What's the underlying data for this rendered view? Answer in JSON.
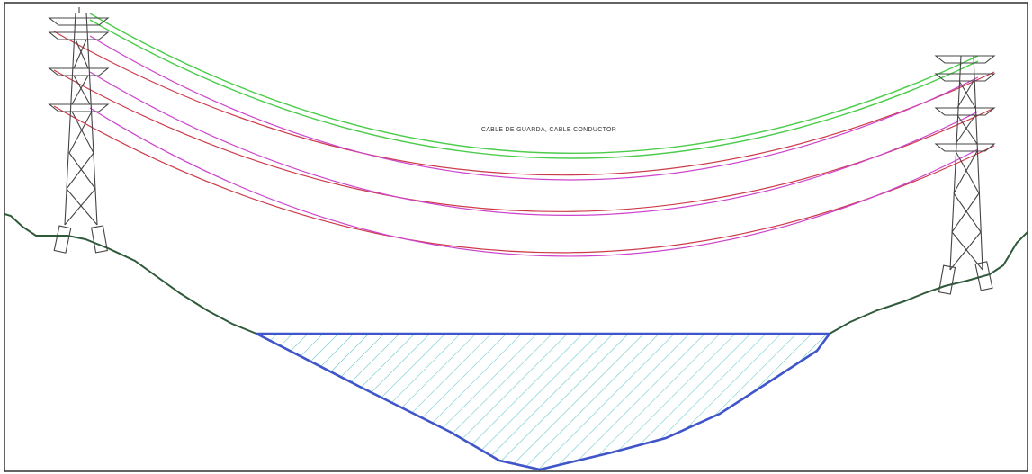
{
  "drawing": {
    "label": "CABLE DE GUARDA, CABLE CONDUCTOR"
  },
  "colors": {
    "background": "#ffffff",
    "border": "#222222",
    "ground": "#2f5a3a",
    "guard_cable": "#4ccc4c",
    "conductor_cable": "#cc3a4a",
    "conductor_cable_alt": "#cc44cc",
    "water_outline": "#3f55c9",
    "water_hatch": "#5fc4c4",
    "tower": "#444444"
  },
  "elements": {
    "left_tower": "transmission-tower",
    "right_tower": "transmission-tower",
    "water_body": "hatched-reservoir",
    "terrain": "ground-profile"
  }
}
